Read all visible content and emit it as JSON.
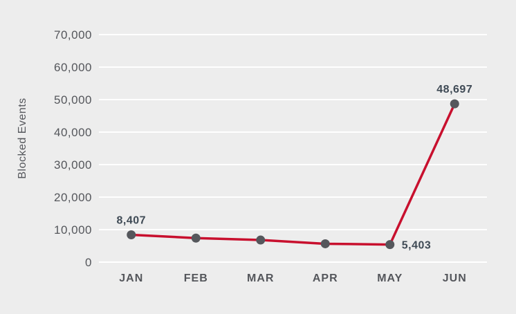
{
  "chart_data": {
    "type": "line",
    "title": "",
    "xlabel": "",
    "ylabel": "Blocked Events",
    "categories": [
      "JAN",
      "FEB",
      "MAR",
      "APR",
      "MAY",
      "JUN"
    ],
    "series": [
      {
        "name": "Blocked Events",
        "values": [
          8407,
          7400,
          6800,
          5650,
          5403,
          48697
        ]
      }
    ],
    "point_labels": [
      {
        "index": 0,
        "text": "8,407",
        "position": "above"
      },
      {
        "index": 4,
        "text": "5,403",
        "position": "right"
      },
      {
        "index": 5,
        "text": "48,697",
        "position": "above"
      }
    ],
    "y_ticks": [
      "0",
      "10,000",
      "20,000",
      "30,000",
      "40,000",
      "50,000",
      "60,000",
      "70,000"
    ],
    "ylim": [
      0,
      70000
    ],
    "grid": "horizontal",
    "legend": "none",
    "colors": {
      "background": "#EDEDED",
      "gridline": "#FFFFFF",
      "line": "#C8102E",
      "marker": "#55575C",
      "tick_text": "#54565B",
      "axis_title": "#54565B",
      "x_label": "#54565B",
      "data_label": "#3F4A55"
    }
  }
}
